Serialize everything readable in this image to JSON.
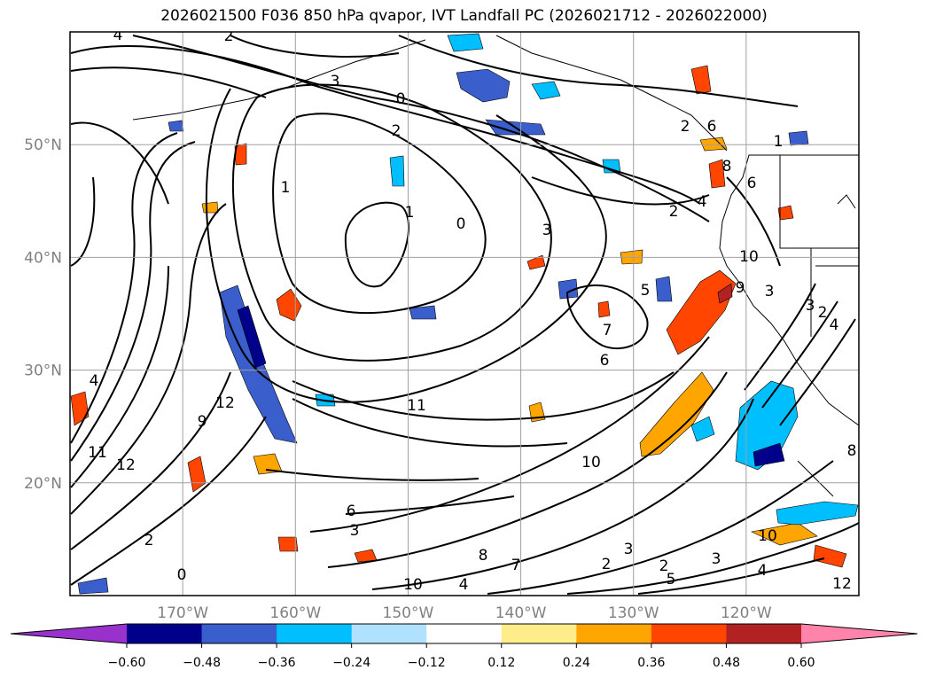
{
  "title": "2026021500 F036 850 hPa qvapor, IVT Landfall PC (2026021712 - 2026022000)",
  "map": {
    "lon_range": [
      -180,
      -110
    ],
    "lat_range": [
      10,
      60
    ],
    "lon_ticks": [
      {
        "lon": -170,
        "label": "170°W"
      },
      {
        "lon": -160,
        "label": "160°W"
      },
      {
        "lon": -150,
        "label": "150°W"
      },
      {
        "lon": -140,
        "label": "140°W"
      },
      {
        "lon": -130,
        "label": "130°W"
      },
      {
        "lon": -120,
        "label": "120°W"
      }
    ],
    "lat_ticks": [
      {
        "lat": 20,
        "label": "20°N"
      },
      {
        "lat": 30,
        "label": "30°N"
      },
      {
        "lat": 40,
        "label": "40°N"
      },
      {
        "lat": 50,
        "label": "50°N"
      }
    ],
    "gridlines": true,
    "contour_labels": [
      "4",
      "2",
      "3",
      "0",
      "1",
      "2",
      "1",
      "0",
      "3",
      "2",
      "4",
      "6",
      "8",
      "10",
      "9",
      "5",
      "7",
      "6",
      "11",
      "10",
      "12",
      "9",
      "11",
      "12",
      "4",
      "2",
      "3",
      "6",
      "8",
      "4",
      "7",
      "10",
      "2",
      "5",
      "3",
      "4",
      "3",
      "2",
      "0",
      "1",
      "2",
      "6",
      "3",
      "3",
      "2",
      "4",
      "8",
      "10",
      "12"
    ]
  },
  "colorbar": {
    "levels": [
      "-0.60",
      "-0.48",
      "-0.36",
      "-0.24",
      "-0.12",
      "0.12",
      "0.24",
      "0.36",
      "0.48",
      "0.60"
    ],
    "colors": [
      "#9932cc",
      "#00008b",
      "#3a5fcd",
      "#00bfff",
      "#b0e2ff",
      "#ffffff",
      "#ffec8b",
      "#ffa500",
      "#ff4500",
      "#b22222",
      "#ff83aa"
    ],
    "extend": "both"
  }
}
